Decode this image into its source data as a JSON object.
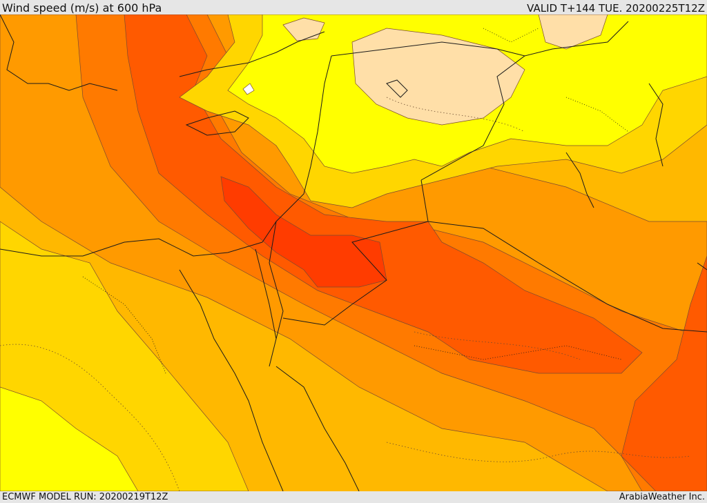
{
  "header": {
    "title": "Wind speed (m/s) at 600 hPa",
    "valid": "VALID T+144 TUE. 20200225T12Z"
  },
  "footer": {
    "model_run": "ECMWF MODEL RUN: 20200219T12Z",
    "brand": "ArabiaWeather Inc."
  },
  "palette": {
    "calm": "#ffffff",
    "very_light": "#ffdfa8",
    "light": "#ffff00",
    "moderate_low": "#ffd600",
    "moderate": "#ffb800",
    "strong_low": "#ff9a00",
    "strong": "#ff7a00",
    "very_strong": "#ff5a00",
    "jet_core": "#ff3c00",
    "contour": "#7a4a30",
    "border": "#1a1a1a"
  }
}
